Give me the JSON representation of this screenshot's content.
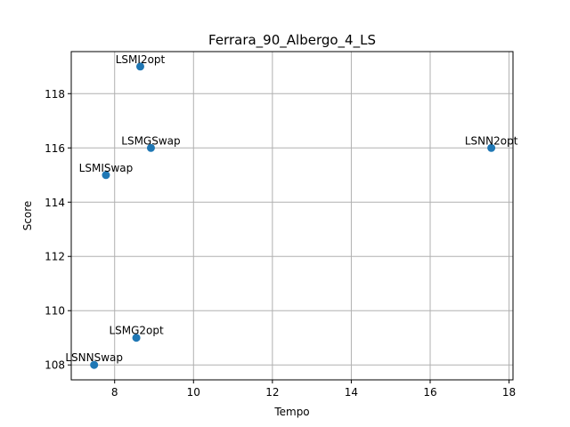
{
  "chart_data": {
    "type": "scatter",
    "title": "Ferrara_90_Albergo_4_LS",
    "xlabel": "Tempo",
    "ylabel": "Score",
    "xlim": [
      6.9,
      18.1
    ],
    "ylim": [
      107.45,
      119.55
    ],
    "xticks": [
      8,
      10,
      12,
      14,
      16,
      18
    ],
    "yticks": [
      108,
      110,
      112,
      114,
      116,
      118
    ],
    "grid": true,
    "marker_color": "#1f77b4",
    "points": [
      {
        "label": "LSMI2opt",
        "x": 8.65,
        "y": 119
      },
      {
        "label": "LSMGSwap",
        "x": 8.92,
        "y": 116
      },
      {
        "label": "LSNN2opt",
        "x": 17.55,
        "y": 116
      },
      {
        "label": "LSMISwap",
        "x": 7.78,
        "y": 115
      },
      {
        "label": "LSMG2opt",
        "x": 8.55,
        "y": 109
      },
      {
        "label": "LSNNSwap",
        "x": 7.48,
        "y": 108
      }
    ]
  }
}
